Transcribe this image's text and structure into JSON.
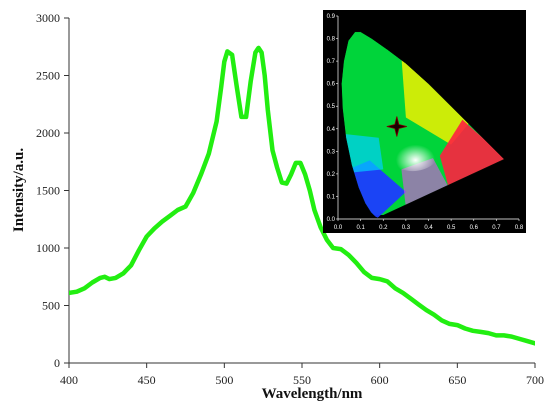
{
  "chart_data": [
    {
      "type": "line",
      "xlabel": "Wavelength/nm",
      "ylabel": "Intensity/a.u.",
      "xlim": [
        400,
        700
      ],
      "ylim": [
        0,
        3000
      ],
      "x_ticks": [
        "400",
        "450",
        "500",
        "550",
        "600",
        "650",
        "700"
      ],
      "y_ticks": [
        "0",
        "500",
        "1000",
        "1500",
        "2000",
        "2500",
        "3000"
      ],
      "grid": false,
      "line_color": "#22ee11",
      "series": [
        {
          "x": [
            400,
            405,
            410,
            415,
            420,
            423,
            426,
            430,
            435,
            440,
            445,
            450,
            455,
            460,
            465,
            470,
            475,
            480,
            485,
            490,
            495,
            498,
            500,
            502,
            505,
            508,
            511,
            514,
            517,
            520,
            522,
            524,
            526,
            528,
            531,
            534,
            537,
            540,
            543,
            546,
            549,
            552,
            555,
            558,
            562,
            566,
            570,
            575,
            580,
            585,
            590,
            595,
            600,
            605,
            610,
            615,
            620,
            625,
            630,
            635,
            640,
            645,
            650,
            655,
            660,
            665,
            670,
            675,
            680,
            685,
            690,
            695,
            700
          ],
          "y": [
            610,
            620,
            650,
            700,
            740,
            750,
            730,
            740,
            780,
            850,
            980,
            1100,
            1170,
            1230,
            1280,
            1330,
            1360,
            1480,
            1640,
            1820,
            2100,
            2400,
            2620,
            2710,
            2680,
            2400,
            2140,
            2140,
            2450,
            2700,
            2740,
            2700,
            2500,
            2200,
            1850,
            1700,
            1570,
            1560,
            1640,
            1740,
            1740,
            1640,
            1500,
            1330,
            1180,
            1070,
            1000,
            990,
            940,
            870,
            790,
            740,
            730,
            710,
            650,
            610,
            560,
            510,
            460,
            420,
            370,
            340,
            330,
            300,
            280,
            270,
            260,
            240,
            240,
            230,
            210,
            190,
            170
          ]
        }
      ]
    },
    {
      "type": "scatter",
      "title": "",
      "xlim": [
        0,
        0.8
      ],
      "ylim": [
        0,
        0.9
      ],
      "x_ticks": [
        "0.0",
        "0.1",
        "0.2",
        "0.3",
        "0.4",
        "0.5",
        "0.6",
        "0.7",
        "0.8"
      ],
      "y_ticks": [
        "0.0",
        "0.1",
        "0.2",
        "0.3",
        "0.4",
        "0.5",
        "0.6",
        "0.7",
        "0.8",
        "0.9"
      ],
      "background": "#000000",
      "series": [
        {
          "x": [
            0.26
          ],
          "y": [
            0.41
          ]
        }
      ],
      "locus": {
        "x": [
          0.175,
          0.165,
          0.145,
          0.12,
          0.09,
          0.06,
          0.035,
          0.02,
          0.015,
          0.025,
          0.045,
          0.075,
          0.1,
          0.15,
          0.22,
          0.3,
          0.4,
          0.5,
          0.6,
          0.735
        ],
        "y": [
          0.005,
          0.01,
          0.03,
          0.07,
          0.14,
          0.24,
          0.36,
          0.49,
          0.6,
          0.7,
          0.79,
          0.83,
          0.83,
          0.8,
          0.75,
          0.69,
          0.6,
          0.5,
          0.4,
          0.265
        ]
      }
    }
  ]
}
